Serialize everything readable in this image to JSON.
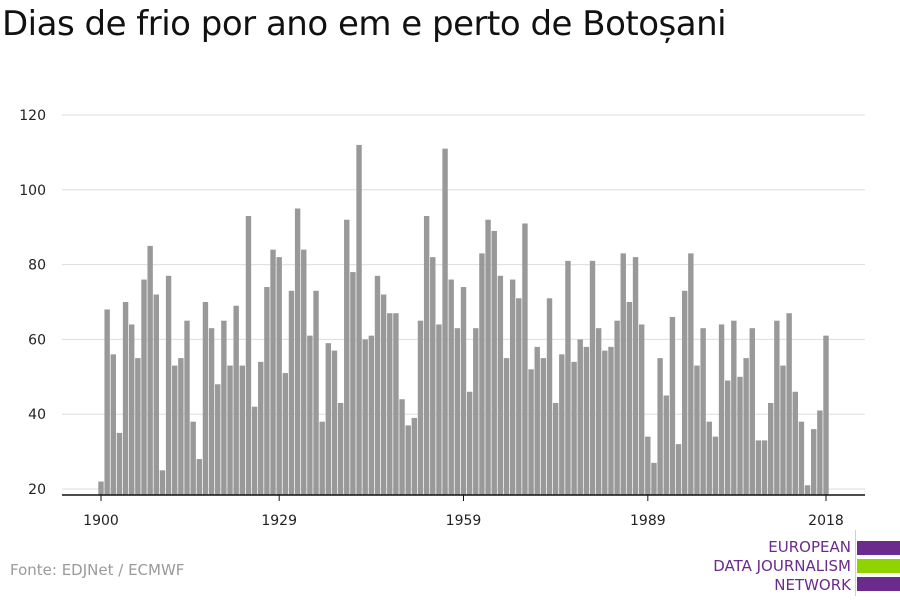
{
  "header": {
    "title": "Dias de frio por ano em e perto de Botoșani"
  },
  "footer": {
    "source": "Fonte: EDJNet / ECMWF"
  },
  "logo": {
    "lines": [
      "EUROPEAN",
      "DATA JOURNALISM",
      "NETWORK"
    ],
    "colors": [
      "#6b2b8c",
      "#8fd400",
      "#6b2b8c"
    ]
  },
  "colors": {
    "bar": "#999999",
    "grid": "#dddddd",
    "axis": "#111111",
    "tick_text": "#222222"
  },
  "chart_data": {
    "type": "bar",
    "title": "Dias de frio por ano em e perto de Botoșani",
    "xlabel": "",
    "ylabel": "",
    "ylim": [
      20,
      120
    ],
    "yticks": [
      20,
      40,
      60,
      80,
      100,
      120
    ],
    "xticks": [
      1900,
      1929,
      1959,
      1989,
      2018
    ],
    "xlim": [
      1900,
      2018
    ],
    "grid": true,
    "legend": "none",
    "x": [
      1900,
      1901,
      1902,
      1903,
      1904,
      1905,
      1906,
      1907,
      1908,
      1909,
      1910,
      1911,
      1912,
      1913,
      1914,
      1915,
      1916,
      1917,
      1918,
      1919,
      1920,
      1921,
      1922,
      1923,
      1924,
      1925,
      1926,
      1927,
      1928,
      1929,
      1930,
      1931,
      1932,
      1933,
      1934,
      1935,
      1936,
      1937,
      1938,
      1939,
      1940,
      1941,
      1942,
      1943,
      1944,
      1945,
      1946,
      1947,
      1948,
      1949,
      1950,
      1951,
      1952,
      1953,
      1954,
      1955,
      1956,
      1957,
      1958,
      1959,
      1960,
      1961,
      1962,
      1963,
      1964,
      1965,
      1966,
      1967,
      1968,
      1969,
      1970,
      1971,
      1972,
      1973,
      1974,
      1975,
      1976,
      1977,
      1978,
      1979,
      1980,
      1981,
      1982,
      1983,
      1984,
      1985,
      1986,
      1987,
      1988,
      1989,
      1990,
      1991,
      1992,
      1993,
      1994,
      1995,
      1996,
      1997,
      1998,
      1999,
      2000,
      2001,
      2002,
      2003,
      2004,
      2005,
      2006,
      2007,
      2008,
      2009,
      2010,
      2011,
      2012,
      2013,
      2014,
      2015,
      2016,
      2017,
      2018
    ],
    "values": [
      22,
      68,
      56,
      35,
      70,
      64,
      55,
      76,
      85,
      72,
      25,
      77,
      53,
      55,
      65,
      38,
      28,
      70,
      63,
      48,
      65,
      53,
      69,
      53,
      93,
      42,
      54,
      74,
      84,
      82,
      51,
      73,
      95,
      84,
      61,
      73,
      38,
      59,
      57,
      43,
      92,
      78,
      112,
      60,
      61,
      77,
      72,
      67,
      67,
      44,
      37,
      39,
      65,
      93,
      82,
      64,
      111,
      76,
      63,
      74,
      46,
      63,
      83,
      92,
      89,
      77,
      55,
      76,
      71,
      91,
      52,
      58,
      55,
      71,
      43,
      56,
      81,
      54,
      60,
      58,
      81,
      63,
      57,
      58,
      65,
      83,
      70,
      82,
      64,
      34,
      27,
      55,
      45,
      66,
      32,
      73,
      83,
      53,
      63,
      38,
      34,
      64,
      49,
      65,
      50,
      55,
      63,
      33,
      33,
      43,
      65,
      53,
      67,
      46,
      38,
      21,
      36,
      41,
      61
    ]
  }
}
